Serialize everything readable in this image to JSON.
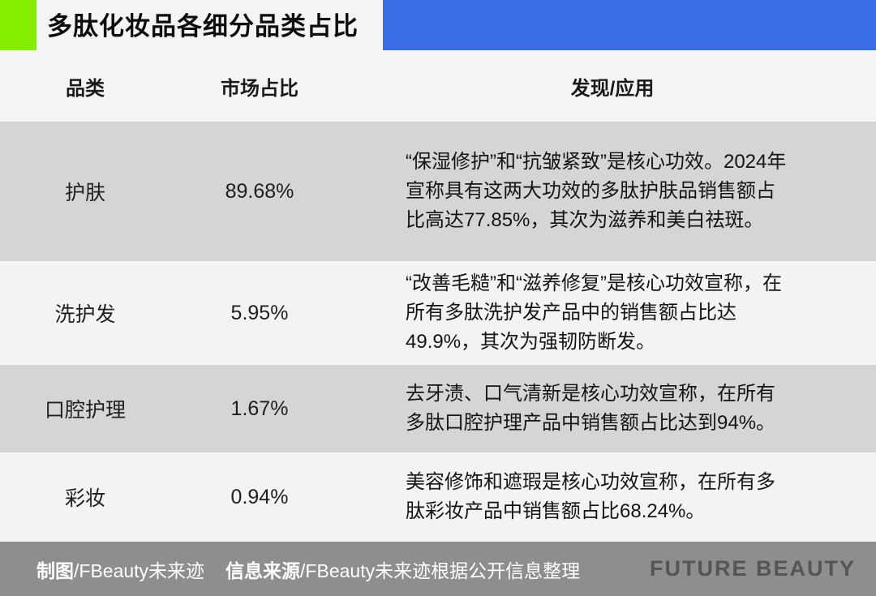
{
  "header": {
    "title": "多肽化妆品各细分品类占比",
    "accent_green": "#85ee00",
    "accent_blue": "#3a6ce4"
  },
  "table": {
    "columns": [
      "品类",
      "市场占比",
      "发现/应用"
    ],
    "rows": [
      {
        "category": "护肤",
        "share": "89.68%",
        "description": "“保湿修护”和“抗皱紧致”是核心功效。2024年宣称具有这两大功效的多肽护肤品销售额占比高达77.85%，其次为滋养和美白祛斑。"
      },
      {
        "category": "洗护发",
        "share": "5.95%",
        "description": "“改善毛糙”和“滋养修复”是核心功效宣称，在所有多肽洗护发产品中的销售额占比达49.9%，其次为强韧防断发。"
      },
      {
        "category": "口腔护理",
        "share": "1.67%",
        "description": "去牙渍、口气清新是核心功效宣称，在所有多肽口腔护理产品中销售额占比达到94%。"
      },
      {
        "category": "彩妆",
        "share": "0.94%",
        "description": "美容修饰和遮瑕是核心功效宣称，在所有多肽彩妆产品中销售额占比68.24%。"
      }
    ]
  },
  "footer": {
    "credit_label": "制图",
    "credit_value": "/FBeauty未来迹",
    "source_label": "信息来源",
    "source_value": "/FBeauty未来迹根据公开信息整理",
    "brand": "FUTURE BEAUTY"
  },
  "chart_data": {
    "type": "table",
    "title": "多肽化妆品各细分品类占比",
    "columns": [
      "品类",
      "市场占比",
      "发现/应用"
    ],
    "categories": [
      "护肤",
      "洗护发",
      "口腔护理",
      "彩妆"
    ],
    "values": [
      89.68,
      5.95,
      1.67,
      0.94
    ],
    "notes": [
      "“保湿修护”和“抗皱紧致”是核心功效。2024年宣称具有这两大功效的多肽护肤品销售额占比高达77.85%，其次为滋养和美白祛斑。",
      "“改善毛糙”和“滋养修复”是核心功效宣称，在所有多肽洗护发产品中的销售额占比达49.9%，其次为强韧防断发。",
      "去牙渍、口气清新是核心功效宣称，在所有多肽口腔护理产品中销售额占比达到94%。",
      "美容修饰和遮瑕是核心功效宣称，在所有多肽彩妆产品中销售额占比68.24%。"
    ],
    "unit": "%",
    "value_column": "市场占比"
  }
}
